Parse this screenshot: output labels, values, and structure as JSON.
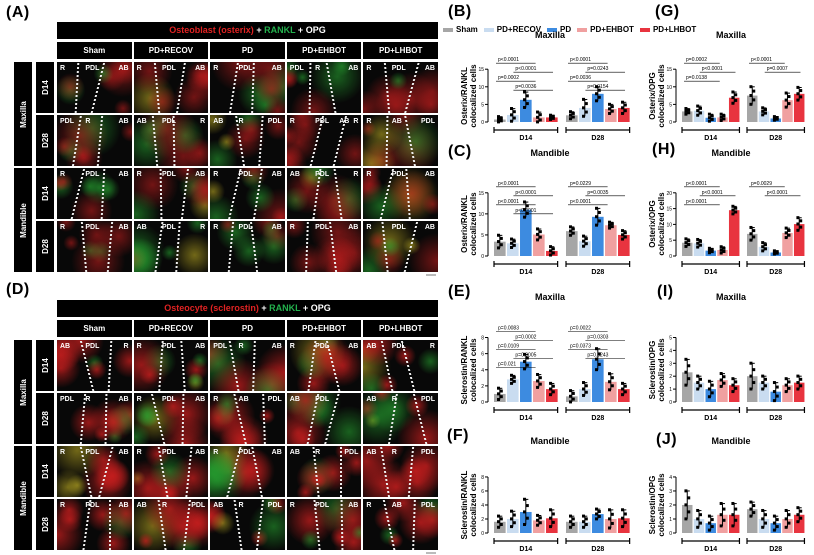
{
  "panel_letters": {
    "A": "(A)",
    "B": "(B)",
    "C": "(C)",
    "D": "(D)",
    "E": "(E)",
    "F": "(F)",
    "G": "(G)",
    "H": "(H)",
    "I": "(I)",
    "J": "(J)"
  },
  "legend": {
    "items": [
      {
        "label": "Sham",
        "color": "#a6a6a6"
      },
      {
        "label": "PD+RECOV",
        "color": "#c9dcf0"
      },
      {
        "label": "PD",
        "color": "#3d8be0"
      },
      {
        "label": "PD+EHBOT",
        "color": "#f0a0a0"
      },
      {
        "label": "PD+LHBOT",
        "color": "#e8343f"
      }
    ]
  },
  "micrograph_A": {
    "header": {
      "part1": "Osteoblast (osterix)",
      "plus1": " + ",
      "part2": "RANKL",
      "plus2": " + ",
      "part3": "OPG"
    },
    "groups": [
      "Sham",
      "PD+RECOV",
      "PD",
      "PD+EHBOT",
      "PD+LHBOT"
    ],
    "jaws": [
      "Maxilla",
      "Mandible"
    ],
    "days": [
      "D14",
      "D28"
    ],
    "tile_labels": [
      [
        [
          "R",
          "PDL",
          "AB"
        ],
        [
          "R",
          "PDL",
          "AB"
        ],
        [
          "R",
          "PDL",
          "AB"
        ],
        [
          "PDL",
          "R",
          "AB"
        ],
        [
          "R",
          "PDL",
          "AB"
        ]
      ],
      [
        [
          "PDL",
          "R",
          "AB"
        ],
        [
          "AB",
          "PDL",
          "R"
        ],
        [
          "AB",
          "R",
          "PDL"
        ],
        [
          "R",
          "PDL",
          "R",
          "AB"
        ],
        [
          "R",
          "AB",
          "PDL"
        ]
      ],
      [
        [
          "R",
          "PDL",
          "AB"
        ],
        [
          "R",
          "PDL",
          "AB"
        ],
        [
          "R",
          "PDL",
          "AB"
        ],
        [
          "AB",
          "PDL",
          "R"
        ],
        [
          "R",
          "PDL",
          "AB"
        ]
      ],
      [
        [
          "R",
          "PDL",
          "AB"
        ],
        [
          "AB",
          "PDL",
          "R"
        ],
        [
          "R",
          "PDL",
          "AB"
        ],
        [
          "R",
          "PDL",
          "AB"
        ],
        [
          "R",
          "PDL",
          "AB"
        ]
      ]
    ]
  },
  "micrograph_D": {
    "header": {
      "part1": "Osteocyte (sclerostin)",
      "plus1": " + ",
      "part2": "RANKL",
      "plus2": " + ",
      "part3": "OPG"
    },
    "groups": [
      "Sham",
      "PD+RECOV",
      "PD",
      "PD+EHBOT",
      "PD+LHBOT"
    ],
    "jaws": [
      "Maxilla",
      "Mandible"
    ],
    "days": [
      "D14",
      "D28"
    ],
    "tile_labels": [
      [
        [
          "AB",
          "PDL",
          "R"
        ],
        [
          "R",
          "PDL",
          "AB"
        ],
        [
          "PDL",
          "R",
          "AB"
        ],
        [
          "R",
          "PDL",
          "AB"
        ],
        [
          "AB",
          "PDL",
          "R"
        ]
      ],
      [
        [
          "PDL",
          "R",
          "AB"
        ],
        [
          "R",
          "PDL",
          "AB"
        ],
        [
          "R",
          "AB",
          "PDL"
        ],
        [
          "AB",
          "PDL"
        ],
        [
          "AB",
          "R",
          "PDL"
        ]
      ],
      [
        [
          "R",
          "PDL",
          "AB"
        ],
        [
          "R",
          "PDL",
          "AB"
        ],
        [
          "R",
          "PDL",
          "AB"
        ],
        [
          "AB",
          "R",
          "PDL"
        ],
        [
          "AB",
          "R",
          "PDL"
        ]
      ],
      [
        [
          "R",
          "PDL",
          "AB"
        ],
        [
          "AB",
          "R",
          "PDL"
        ],
        [
          "AB",
          "R",
          "PDL"
        ],
        [
          "R",
          "PDL",
          "AB"
        ],
        [
          "R",
          "AB",
          "PDL"
        ]
      ]
    ]
  },
  "chart_data": [
    {
      "id": "B",
      "type": "bar",
      "title": "Maxilla",
      "ylabel": "Osterix/RANKL colocalized cells",
      "ylim": [
        0,
        15
      ],
      "yticks": [
        0,
        5,
        10,
        15
      ],
      "categories": [
        "D14",
        "D28"
      ],
      "series": [
        {
          "name": "Sham",
          "values": [
            0.7,
            1.9
          ],
          "err": [
            0.8,
            1.0
          ]
        },
        {
          "name": "PD+RECOV",
          "values": [
            2.0,
            4.0
          ],
          "err": [
            1.8,
            2.4
          ]
        },
        {
          "name": "PD",
          "values": [
            6.3,
            8.0
          ],
          "err": [
            2.2,
            2.0
          ]
        },
        {
          "name": "PD+EHBOT",
          "values": [
            1.3,
            3.7
          ],
          "err": [
            1.5,
            1.3
          ]
        },
        {
          "name": "PD+LHBOT",
          "values": [
            1.3,
            4.0
          ],
          "err": [
            0.6,
            1.6
          ]
        }
      ],
      "annotations": [
        "p<0.0001",
        "p<0.0001",
        "p=0.0002",
        "p=0.0036",
        "p<0.0001",
        "p=0.0243",
        "p=0.0036",
        "p=0.0154"
      ]
    },
    {
      "id": "C",
      "type": "bar",
      "title": "Mandible",
      "ylabel": "Osterix/RANKL colocalized cells",
      "ylim": [
        0,
        15
      ],
      "yticks": [
        0,
        5,
        10,
        15
      ],
      "categories": [
        "D14",
        "D28"
      ],
      "series": [
        {
          "name": "Sham",
          "values": [
            3.4,
            5.9
          ],
          "err": [
            1.5,
            1.0
          ]
        },
        {
          "name": "PD+RECOV",
          "values": [
            3.0,
            3.5
          ],
          "err": [
            1.0,
            1.2
          ]
        },
        {
          "name": "PD",
          "values": [
            11.0,
            9.3
          ],
          "err": [
            1.8,
            2.0
          ]
        },
        {
          "name": "PD+EHBOT",
          "values": [
            5.1,
            7.3
          ],
          "err": [
            1.3,
            0.7
          ]
        },
        {
          "name": "PD+LHBOT",
          "values": [
            1.2,
            5.0
          ],
          "err": [
            1.0,
            1.0
          ]
        }
      ],
      "annotations": [
        "p<0.0001",
        "p<0.0001",
        "p<0.0001",
        "p<0.0001",
        "p=0.0229",
        "p=0.0035",
        "p<0.0001"
      ]
    },
    {
      "id": "G",
      "type": "bar",
      "title": "Maxilla",
      "ylabel": "Osterix/OPG colocalized cells",
      "ylim": [
        0,
        15
      ],
      "yticks": [
        0,
        5,
        10,
        15
      ],
      "categories": [
        "D14",
        "D28"
      ],
      "series": [
        {
          "name": "Sham",
          "values": [
            3.0,
            7.5
          ],
          "err": [
            0.8,
            2.5
          ]
        },
        {
          "name": "PD+RECOV",
          "values": [
            3.2,
            3.0
          ],
          "err": [
            1.3,
            1.0
          ]
        },
        {
          "name": "PD",
          "values": [
            1.2,
            1.0
          ],
          "err": [
            1.0,
            0.5
          ]
        },
        {
          "name": "PD+EHBOT",
          "values": [
            1.3,
            6.2
          ],
          "err": [
            0.9,
            2.0
          ]
        },
        {
          "name": "PD+LHBOT",
          "values": [
            6.9,
            8.0
          ],
          "err": [
            1.6,
            1.8
          ]
        }
      ],
      "annotations": [
        "p=0.0002",
        "p<0.0001",
        "p=0.0138",
        "p<0.0001",
        "p=0.0007"
      ]
    },
    {
      "id": "H",
      "type": "bar",
      "title": "Mandible",
      "ylabel": "Osterix/OPG colocalized cells",
      "ylim": [
        0,
        20
      ],
      "yticks": [
        0,
        5,
        10,
        15,
        20
      ],
      "categories": [
        "D14",
        "D28"
      ],
      "series": [
        {
          "name": "Sham",
          "values": [
            4.2,
            7.0
          ],
          "err": [
            1.2,
            2.0
          ]
        },
        {
          "name": "PD+RECOV",
          "values": [
            4.0,
            2.9
          ],
          "err": [
            1.2,
            1.3
          ]
        },
        {
          "name": "PD",
          "values": [
            1.7,
            1.1
          ],
          "err": [
            0.7,
            0.5
          ]
        },
        {
          "name": "PD+EHBOT",
          "values": [
            1.9,
            7.3
          ],
          "err": [
            1.0,
            1.5
          ]
        },
        {
          "name": "PD+LHBOT",
          "values": [
            14.5,
            10.1
          ],
          "err": [
            1.2,
            2.0
          ]
        }
      ],
      "annotations": [
        "p<0.0001",
        "p<0.0001",
        "p<0.0001",
        "p=0.0029",
        "p<0.0001"
      ]
    },
    {
      "id": "E",
      "type": "bar",
      "title": "Maxilla",
      "ylabel": "Sclerostin/RANKL colocalized cells",
      "ylim": [
        0,
        8
      ],
      "yticks": [
        0,
        2,
        4,
        6,
        8
      ],
      "categories": [
        "D14",
        "D28"
      ],
      "series": [
        {
          "name": "Sham",
          "values": [
            1.0,
            0.7
          ],
          "err": [
            0.7,
            0.7
          ]
        },
        {
          "name": "PD+RECOV",
          "values": [
            2.8,
            1.6
          ],
          "err": [
            0.5,
            0.8
          ]
        },
        {
          "name": "PD",
          "values": [
            5.0,
            5.3
          ],
          "err": [
            0.9,
            1.3
          ]
        },
        {
          "name": "PD+EHBOT",
          "values": [
            2.6,
            2.5
          ],
          "err": [
            0.8,
            1.0
          ]
        },
        {
          "name": "PD+LHBOT",
          "values": [
            1.6,
            1.6
          ],
          "err": [
            0.7,
            0.7
          ]
        }
      ],
      "annotations": [
        "p=0.0083",
        "p=0.0002",
        "p=0.0109",
        "p=0.0005",
        "p=0.021",
        "p=0.0022",
        "p=0.0303",
        "p=0.0373",
        "p=0.0243"
      ]
    },
    {
      "id": "F",
      "type": "bar",
      "title": "Mandible",
      "ylabel": "Sclerostin/RANKL colocalized cells",
      "ylim": [
        0,
        8
      ],
      "yticks": [
        0,
        2,
        4,
        6,
        8
      ],
      "categories": [
        "D14",
        "D28"
      ],
      "series": [
        {
          "name": "Sham",
          "values": [
            1.6,
            1.6
          ],
          "err": [
            0.8,
            0.8
          ]
        },
        {
          "name": "PD+RECOV",
          "values": [
            2.0,
            1.6
          ],
          "err": [
            1.1,
            0.8
          ]
        },
        {
          "name": "PD",
          "values": [
            3.0,
            2.7
          ],
          "err": [
            1.8,
            0.7
          ]
        },
        {
          "name": "PD+EHBOT",
          "values": [
            1.8,
            2.0
          ],
          "err": [
            0.7,
            1.3
          ]
        },
        {
          "name": "PD+LHBOT",
          "values": [
            2.1,
            2.1
          ],
          "err": [
            1.2,
            1.2
          ]
        }
      ],
      "annotations": []
    },
    {
      "id": "I",
      "type": "bar",
      "title": "Maxilla",
      "ylabel": "Sclerostin/OPG colocalized cells",
      "ylim": [
        0,
        5
      ],
      "yticks": [
        0,
        1,
        2,
        3,
        4,
        5
      ],
      "categories": [
        "D14",
        "D28"
      ],
      "series": [
        {
          "name": "Sham",
          "values": [
            2.3,
            2.0
          ],
          "err": [
            1.0,
            1.0
          ]
        },
        {
          "name": "PD+RECOV",
          "values": [
            1.5,
            1.5
          ],
          "err": [
            0.5,
            0.5
          ]
        },
        {
          "name": "PD",
          "values": [
            1.0,
            0.8
          ],
          "err": [
            0.6,
            0.7
          ]
        },
        {
          "name": "PD+EHBOT",
          "values": [
            1.7,
            1.3
          ],
          "err": [
            0.5,
            0.5
          ]
        },
        {
          "name": "PD+LHBOT",
          "values": [
            1.3,
            1.5
          ],
          "err": [
            0.5,
            0.5
          ]
        }
      ],
      "annotations": []
    },
    {
      "id": "J",
      "type": "bar",
      "title": "Mandible",
      "ylabel": "Sclerostin/OPG colocalized cells",
      "ylim": [
        0,
        4
      ],
      "yticks": [
        0,
        1,
        2,
        3,
        4
      ],
      "categories": [
        "D14",
        "D28"
      ],
      "series": [
        {
          "name": "Sham",
          "values": [
            2.0,
            1.7
          ],
          "err": [
            1.0,
            0.5
          ]
        },
        {
          "name": "PD+RECOV",
          "values": [
            1.0,
            1.0
          ],
          "err": [
            0.6,
            0.6
          ]
        },
        {
          "name": "PD",
          "values": [
            0.7,
            0.7
          ],
          "err": [
            0.5,
            0.5
          ]
        },
        {
          "name": "PD+EHBOT",
          "values": [
            1.3,
            1.0
          ],
          "err": [
            0.8,
            0.6
          ]
        },
        {
          "name": "PD+LHBOT",
          "values": [
            1.3,
            1.3
          ],
          "err": [
            0.8,
            0.5
          ]
        }
      ],
      "annotations": []
    }
  ]
}
